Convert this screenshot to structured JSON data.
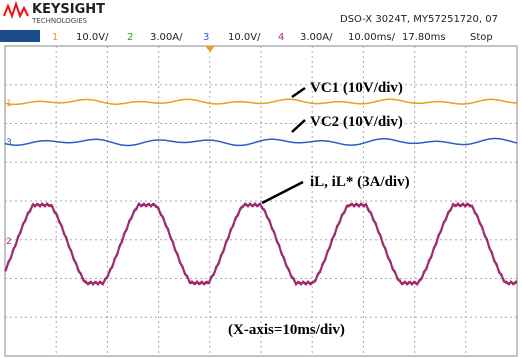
{
  "header": {
    "brand": "KEYSIGHT",
    "brand_sub": "TECHNOLOGIES",
    "instrument": "DSO-X 3024T, MY57251720, 07"
  },
  "channels": [
    {
      "number": "1",
      "scale": "10.0V/"
    },
    {
      "number": "2",
      "scale": "3.00A/"
    },
    {
      "number": "3",
      "scale": "10.0V/"
    },
    {
      "number": "4",
      "scale": "3.00A/"
    }
  ],
  "timebase": "10.00ms/",
  "delay": "17.80ms",
  "status": "Stop",
  "annotations": [
    "VC1 (10V/div)",
    "VC2 (10V/div)",
    "iL, iL* (3A/div)",
    "(X-axis=10ms/div)"
  ]
}
